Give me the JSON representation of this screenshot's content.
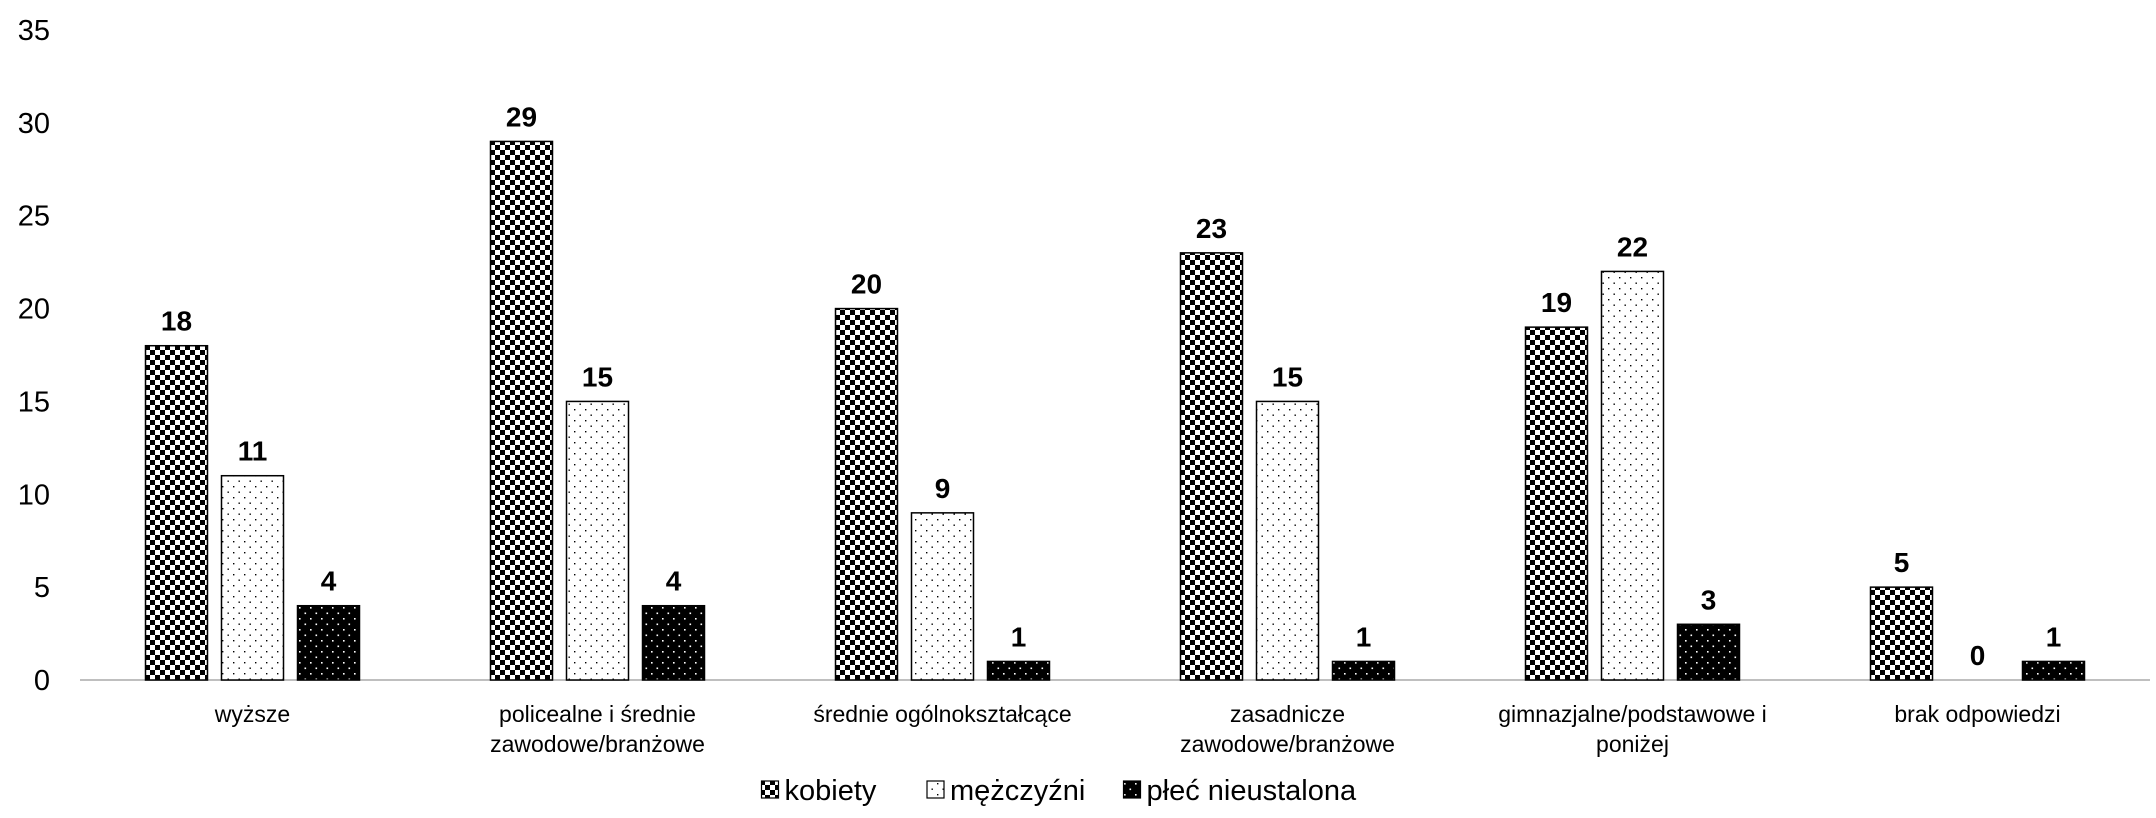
{
  "chart_data": {
    "type": "bar",
    "categories": [
      [
        "wyższe"
      ],
      [
        "policealne i średnie",
        "zawodowe/branżowe"
      ],
      [
        "średnie ogólnokształcące"
      ],
      [
        "zasadnicze",
        "zawodowe/branżowe"
      ],
      [
        "gimnazjalne/podstawowe i",
        "poniżej"
      ],
      [
        "brak odpowiedzi"
      ]
    ],
    "series": [
      {
        "name": "kobiety",
        "pattern": "checker",
        "values": [
          18,
          29,
          20,
          23,
          19,
          5
        ]
      },
      {
        "name": "mężczyźni",
        "pattern": "dots-light",
        "values": [
          11,
          15,
          9,
          15,
          22,
          0
        ]
      },
      {
        "name": "płeć nieustalona",
        "pattern": "dots-dark",
        "values": [
          4,
          4,
          1,
          1,
          3,
          1
        ]
      }
    ],
    "ylim": [
      0,
      35
    ],
    "yticks": [
      0,
      5,
      10,
      15,
      20,
      25,
      30,
      35
    ],
    "title": "",
    "xlabel": "",
    "ylabel": "",
    "grid": false,
    "legend_position": "bottom",
    "colors": {
      "foreground": "#000000",
      "background": "#ffffff",
      "axis": "#bfbfbf"
    }
  }
}
